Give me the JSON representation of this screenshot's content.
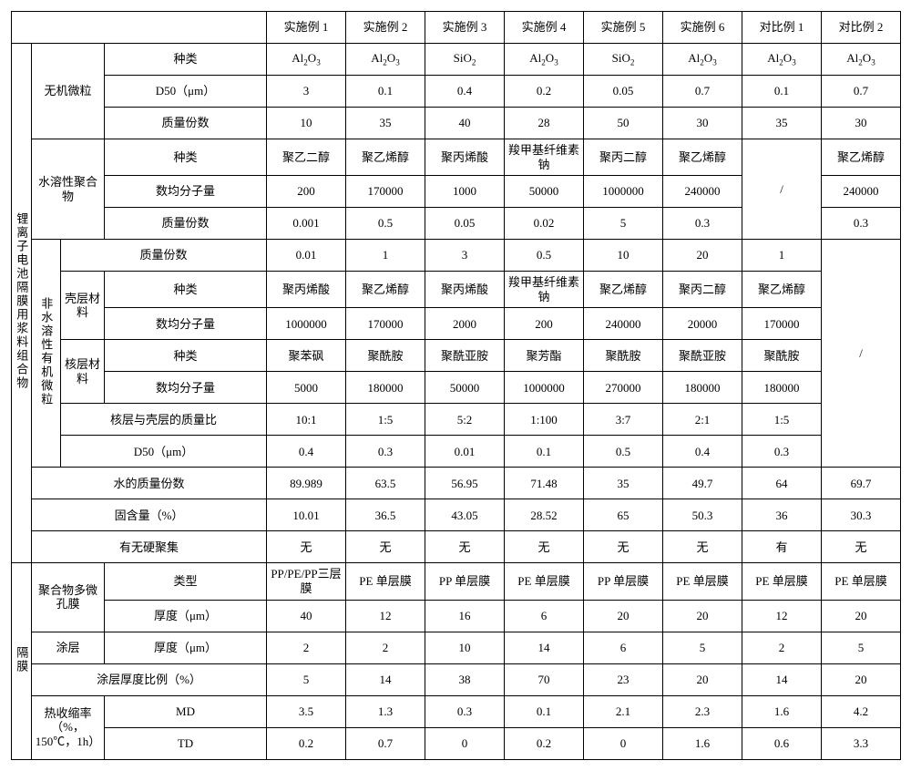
{
  "headers": [
    "实施例 1",
    "实施例 2",
    "实施例 3",
    "实施例 4",
    "实施例 5",
    "实施例 6",
    "对比例 1",
    "对比例 2"
  ],
  "group_a_label": "锂离子电池隔膜用浆料组合物",
  "group_b_label": "隔膜",
  "sec1": {
    "label": "无机微粒",
    "r1_label": "种类",
    "r1": [
      "Al₂O₃",
      "Al₂O₃",
      "SiO₂",
      "Al₂O₃",
      "SiO₂",
      "Al₂O₃",
      "Al₂O₃",
      "Al₂O₃"
    ],
    "r2_label": "D50（μm）",
    "r2": [
      "3",
      "0.1",
      "0.4",
      "0.2",
      "0.05",
      "0.7",
      "0.1",
      "0.7"
    ],
    "r3_label": "质量份数",
    "r3": [
      "10",
      "35",
      "40",
      "28",
      "50",
      "30",
      "35",
      "30"
    ]
  },
  "sec2": {
    "label": "水溶性聚合物",
    "r1_label": "种类",
    "r1": [
      "聚乙二醇",
      "聚乙烯醇",
      "聚丙烯酸",
      "羧甲基纤维素钠",
      "聚丙二醇",
      "聚乙烯醇"
    ],
    "r2_label": "数均分子量",
    "r2": [
      "200",
      "170000",
      "1000",
      "50000",
      "1000000",
      "240000"
    ],
    "r3_label": "质量份数",
    "r3": [
      "0.001",
      "0.5",
      "0.05",
      "0.02",
      "5",
      "0.3"
    ],
    "comp1": "/",
    "comp2_r1": "聚乙烯醇",
    "comp2_r2": "240000",
    "comp2_r3": "0.3"
  },
  "sec3": {
    "label": "非水溶性有机微粒",
    "r1_label": "质量份数",
    "r1": [
      "0.01",
      "1",
      "3",
      "0.5",
      "10",
      "20",
      "1"
    ],
    "shell_label": "壳层材料",
    "r2_label": "种类",
    "r2": [
      "聚丙烯酸",
      "聚乙烯醇",
      "聚丙烯酸",
      "羧甲基纤维素钠",
      "聚乙烯醇",
      "聚丙二醇",
      "聚乙烯醇"
    ],
    "r3_label": "数均分子量",
    "r3": [
      "1000000",
      "170000",
      "2000",
      "200",
      "240000",
      "20000",
      "170000"
    ],
    "core_label": "核层材料",
    "r4_label": "种类",
    "r4": [
      "聚苯砜",
      "聚酰胺",
      "聚酰亚胺",
      "聚芳酯",
      "聚酰胺",
      "聚酰亚胺",
      "聚酰胺"
    ],
    "r5_label": "数均分子量",
    "r5": [
      "5000",
      "180000",
      "50000",
      "1000000",
      "270000",
      "180000",
      "180000"
    ],
    "r6_label": "核层与壳层的质量比",
    "r6": [
      "10:1",
      "1:5",
      "5:2",
      "1:100",
      "3:7",
      "2:1",
      "1:5"
    ],
    "r7_label": "D50（μm）",
    "r7": [
      "0.4",
      "0.3",
      "0.01",
      "0.1",
      "0.5",
      "0.4",
      "0.3"
    ],
    "comp2": "/"
  },
  "sec4": {
    "label": "水的质量份数",
    "v": [
      "89.989",
      "63.5",
      "56.95",
      "71.48",
      "35",
      "49.7",
      "64",
      "69.7"
    ]
  },
  "sec5": {
    "label": "固含量（%）",
    "v": [
      "10.01",
      "36.5",
      "43.05",
      "28.52",
      "65",
      "50.3",
      "36",
      "30.3"
    ]
  },
  "sec6": {
    "label": "有无硬聚集",
    "v": [
      "无",
      "无",
      "无",
      "无",
      "无",
      "无",
      "有",
      "无"
    ]
  },
  "sec7": {
    "label": "聚合物多微孔膜",
    "r1_label": "类型",
    "r1": [
      "PP/PE/PP三层膜",
      "PE 单层膜",
      "PP 单层膜",
      "PE 单层膜",
      "PP 单层膜",
      "PE 单层膜",
      "PE 单层膜",
      "PE 单层膜"
    ],
    "r2_label": "厚度（μm）",
    "r2": [
      "40",
      "12",
      "16",
      "6",
      "20",
      "20",
      "12",
      "20"
    ]
  },
  "sec8": {
    "label": "涂层",
    "r1_label": "厚度（μm）",
    "r1": [
      "2",
      "2",
      "10",
      "14",
      "6",
      "5",
      "2",
      "5"
    ]
  },
  "sec9": {
    "label": "涂层厚度比例（%）",
    "v": [
      "5",
      "14",
      "38",
      "70",
      "23",
      "20",
      "14",
      "20"
    ]
  },
  "sec10": {
    "label": "热收缩率（%，150℃，1h）",
    "r1_label": "MD",
    "r1": [
      "3.5",
      "1.3",
      "0.3",
      "0.1",
      "2.1",
      "2.3",
      "1.6",
      "4.2"
    ],
    "r2_label": "TD",
    "r2": [
      "0.2",
      "0.7",
      "0",
      "0.2",
      "0",
      "1.6",
      "0.6",
      "3.3"
    ]
  }
}
